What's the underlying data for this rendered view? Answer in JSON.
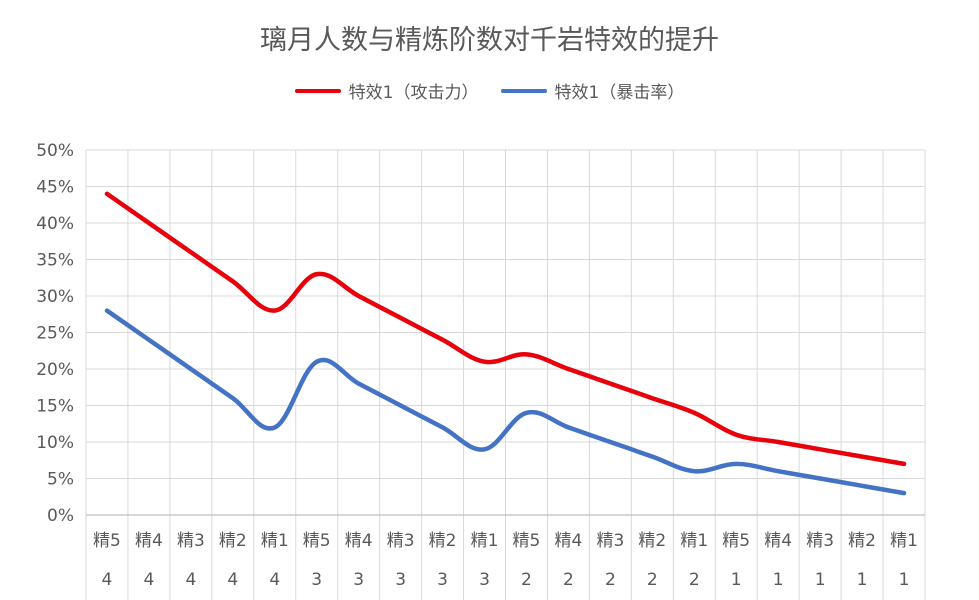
{
  "chart_data": {
    "type": "line",
    "title": "璃月人数与精炼阶数对千岩特效的提升",
    "xlabel": "",
    "ylabel": "",
    "ylim": [
      0,
      0.5
    ],
    "yticks": [
      "0%",
      "5%",
      "10%",
      "15%",
      "20%",
      "25%",
      "30%",
      "35%",
      "40%",
      "45%",
      "50%"
    ],
    "categories_level1": [
      "精5",
      "精4",
      "精3",
      "精2",
      "精1",
      "精5",
      "精4",
      "精3",
      "精2",
      "精1",
      "精5",
      "精4",
      "精3",
      "精2",
      "精1",
      "精5",
      "精4",
      "精3",
      "精2",
      "精1"
    ],
    "categories_level2": [
      "4",
      "4",
      "4",
      "4",
      "4",
      "3",
      "3",
      "3",
      "3",
      "3",
      "2",
      "2",
      "2",
      "2",
      "2",
      "1",
      "1",
      "1",
      "1",
      "1"
    ],
    "grid": true,
    "legend_position": "top",
    "series": [
      {
        "name": "特效1（攻击力）",
        "color": "#e8000b",
        "values": [
          0.44,
          0.4,
          0.36,
          0.32,
          0.28,
          0.33,
          0.3,
          0.27,
          0.24,
          0.21,
          0.22,
          0.2,
          0.18,
          0.16,
          0.14,
          0.11,
          0.1,
          0.09,
          0.08,
          0.07
        ]
      },
      {
        "name": "特效1（暴击率）",
        "color": "#4472c4",
        "values": [
          0.28,
          0.24,
          0.2,
          0.16,
          0.12,
          0.21,
          0.18,
          0.15,
          0.12,
          0.09,
          0.14,
          0.12,
          0.1,
          0.08,
          0.06,
          0.07,
          0.06,
          0.05,
          0.04,
          0.03
        ]
      }
    ]
  }
}
